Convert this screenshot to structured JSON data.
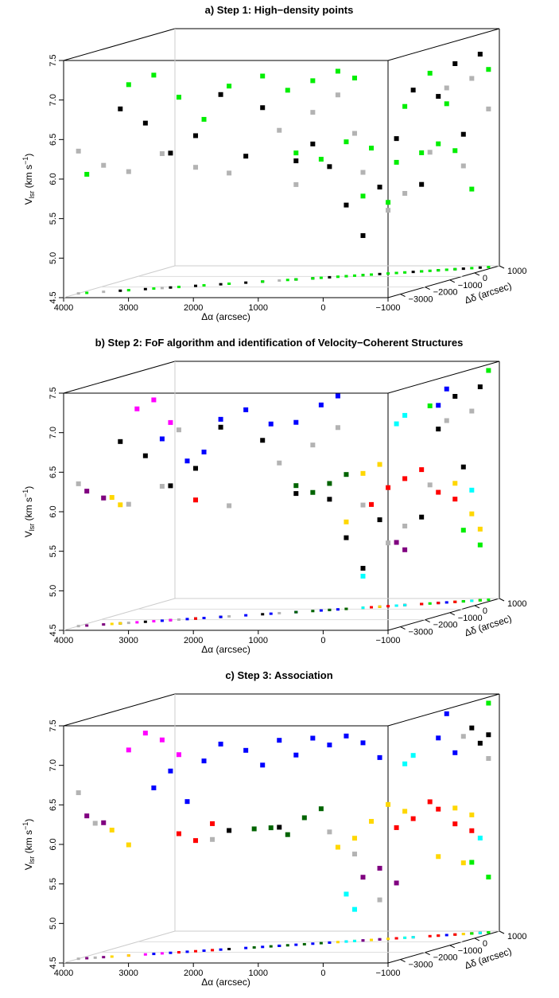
{
  "chart_data": [
    {
      "type": "scatter",
      "title": "a)  Step 1: High−density points",
      "xlabel": "Δα (arcsec)",
      "ylabel": "V",
      "ylabel_sub": "lsr",
      "ylabel_unit": "(km s",
      "ylabel_exp": "−1",
      "ylabel_close": ")",
      "zlabel": "Δδ (arcsec)",
      "xticks": [
        "4000",
        "3000",
        "2000",
        "1000",
        "0",
        "−1000"
      ],
      "yticks": [
        "4.5",
        "5.0",
        "5.5",
        "6.0",
        "6.5",
        "7.0",
        "7.5"
      ],
      "zticks": [
        "−3000",
        "−2000",
        "−1000",
        "0",
        "1000"
      ],
      "xlim": [
        4000,
        -1000
      ],
      "ylim": [
        4.5,
        7.5
      ],
      "zlim": [
        -3500,
        1000
      ],
      "series": [
        {
          "color": "#b3b3b3",
          "points": [
            [
              4000,
              6.3
            ],
            [
              3700,
              6.1
            ],
            [
              3400,
              6.0
            ],
            [
              3000,
              6.2
            ],
            [
              2600,
              6.0
            ],
            [
              2200,
              5.9
            ],
            [
              1600,
              6.4
            ],
            [
              1200,
              6.6
            ],
            [
              900,
              6.8
            ],
            [
              600,
              5.8
            ],
            [
              300,
              5.3
            ],
            [
              100,
              5.5
            ],
            [
              -200,
              6.0
            ],
            [
              -400,
              6.8
            ],
            [
              -700,
              6.9
            ],
            [
              -900,
              6.5
            ],
            [
              700,
              6.3
            ],
            [
              1400,
              5.7
            ],
            [
              -600,
              5.8
            ],
            [
              2800,
              6.9
            ]
          ]
        },
        {
          "color": "#000000",
          "points": [
            [
              3200,
              6.6
            ],
            [
              2900,
              6.2
            ],
            [
              2600,
              6.4
            ],
            [
              2300,
              6.9
            ],
            [
              1800,
              6.7
            ],
            [
              1400,
              6.0
            ],
            [
              1000,
              5.9
            ],
            [
              800,
              5.4
            ],
            [
              600,
              5.0
            ],
            [
              400,
              5.6
            ],
            [
              200,
              6.2
            ],
            [
              -100,
              5.6
            ],
            [
              -300,
              6.7
            ],
            [
              -500,
              7.1
            ],
            [
              -800,
              7.2
            ],
            [
              1200,
              6.2
            ],
            [
              2000,
              6.1
            ],
            [
              3500,
              6.8
            ],
            [
              0,
              6.8
            ],
            [
              -600,
              6.2
            ]
          ]
        },
        {
          "color": "#00ee00",
          "points": [
            [
              3400,
              7.1
            ],
            [
              3100,
              7.2
            ],
            [
              2800,
              6.9
            ],
            [
              2500,
              6.6
            ],
            [
              2200,
              7.0
            ],
            [
              1800,
              7.1
            ],
            [
              1500,
              6.9
            ],
            [
              1200,
              7.0
            ],
            [
              900,
              7.1
            ],
            [
              700,
              7.0
            ],
            [
              1400,
              6.1
            ],
            [
              1100,
              6.0
            ],
            [
              800,
              6.2
            ],
            [
              500,
              6.1
            ],
            [
              200,
              5.9
            ],
            [
              -100,
              6.0
            ],
            [
              -300,
              6.1
            ],
            [
              -500,
              6.0
            ],
            [
              -700,
              5.5
            ],
            [
              600,
              5.5
            ],
            [
              300,
              5.4
            ],
            [
              -200,
              7.0
            ],
            [
              -400,
              6.6
            ],
            [
              3900,
              6.0
            ],
            [
              -900,
              7.0
            ],
            [
              100,
              6.6
            ]
          ]
        }
      ]
    },
    {
      "type": "scatter",
      "title": "b) Step 2: FoF algorithm and identification of Velocity−Coherent Structures",
      "xlabel": "Δα (arcsec)",
      "ylabel": "V",
      "ylabel_sub": "lsr",
      "ylabel_unit": "(km s",
      "ylabel_exp": "−1",
      "ylabel_close": ")",
      "zlabel": "Δδ (arcsec)",
      "xticks": [
        "4000",
        "3000",
        "2000",
        "1000",
        "0",
        "−1000"
      ],
      "yticks": [
        "4.5",
        "5.0",
        "5.5",
        "6.0",
        "6.5",
        "7.0",
        "7.5"
      ],
      "zticks": [
        "−3000",
        "−2000",
        "−1000",
        "0",
        "1000"
      ],
      "xlim": [
        4000,
        -1000
      ],
      "ylim": [
        4.5,
        7.5
      ],
      "zlim": [
        -3500,
        1000
      ],
      "series": [
        {
          "color": "#b3b3b3",
          "points": [
            [
              4000,
              6.3
            ],
            [
              3700,
              6.1
            ],
            [
              3400,
              6.0
            ],
            [
              3000,
              6.2
            ],
            [
              2600,
              6.0
            ],
            [
              2200,
              5.9
            ],
            [
              1600,
              6.4
            ],
            [
              1200,
              6.6
            ],
            [
              900,
              6.8
            ],
            [
              600,
              5.8
            ],
            [
              300,
              5.3
            ],
            [
              100,
              5.5
            ],
            [
              -200,
              6.0
            ],
            [
              -400,
              6.8
            ],
            [
              -700,
              6.9
            ],
            [
              2800,
              6.9
            ]
          ]
        },
        {
          "color": "#000000",
          "points": [
            [
              3200,
              6.6
            ],
            [
              2900,
              6.2
            ],
            [
              2600,
              6.4
            ],
            [
              2300,
              6.9
            ],
            [
              1800,
              6.7
            ],
            [
              1400,
              6.0
            ],
            [
              1000,
              5.9
            ],
            [
              800,
              5.4
            ],
            [
              600,
              5.0
            ],
            [
              400,
              5.6
            ],
            [
              -100,
              5.6
            ],
            [
              -300,
              6.7
            ],
            [
              -500,
              7.1
            ],
            [
              -800,
              7.2
            ],
            [
              3500,
              6.8
            ],
            [
              -600,
              6.2
            ]
          ]
        },
        {
          "color": "#0000ff",
          "points": [
            [
              3000,
              6.8
            ],
            [
              2700,
              6.5
            ],
            [
              2500,
              6.6
            ],
            [
              2300,
              7.0
            ],
            [
              2000,
              7.1
            ],
            [
              1700,
              6.9
            ],
            [
              1400,
              6.9
            ],
            [
              1100,
              7.1
            ],
            [
              900,
              7.2
            ],
            [
              -300,
              7.0
            ],
            [
              -400,
              7.2
            ]
          ]
        },
        {
          "color": "#ff00ff",
          "points": [
            [
              3300,
              7.2
            ],
            [
              3100,
              7.3
            ],
            [
              2900,
              7.0
            ]
          ]
        },
        {
          "color": "#800080",
          "points": [
            [
              3900,
              6.2
            ],
            [
              3700,
              6.1
            ],
            [
              200,
              5.3
            ],
            [
              100,
              5.2
            ]
          ]
        },
        {
          "color": "#ffd700",
          "points": [
            [
              3600,
              6.1
            ],
            [
              3500,
              6.0
            ],
            [
              800,
              5.6
            ],
            [
              600,
              6.2
            ],
            [
              400,
              6.3
            ],
            [
              -500,
              6.0
            ],
            [
              -700,
              5.6
            ],
            [
              -800,
              5.4
            ]
          ]
        },
        {
          "color": "#006400",
          "points": [
            [
              1400,
              6.1
            ],
            [
              1200,
              6.0
            ],
            [
              1000,
              6.1
            ],
            [
              800,
              6.2
            ]
          ]
        },
        {
          "color": "#ff0000",
          "points": [
            [
              2600,
              6.0
            ],
            [
              500,
              5.8
            ],
            [
              300,
              6.0
            ],
            [
              100,
              6.1
            ],
            [
              -100,
              6.2
            ],
            [
              -300,
              5.9
            ],
            [
              -500,
              5.8
            ]
          ]
        },
        {
          "color": "#00ffff",
          "points": [
            [
              200,
              6.8
            ],
            [
              100,
              6.9
            ],
            [
              600,
              4.9
            ],
            [
              -700,
              5.9
            ]
          ]
        },
        {
          "color": "#00ee00",
          "points": [
            [
              -200,
              7.0
            ],
            [
              -600,
              5.4
            ],
            [
              -800,
              5.2
            ],
            [
              -900,
              7.4
            ]
          ]
        }
      ]
    },
    {
      "type": "scatter",
      "title": "c)  Step 3: Association",
      "xlabel": "Δα (arcsec)",
      "ylabel": "V",
      "ylabel_sub": "lsr",
      "ylabel_unit": "(km s",
      "ylabel_exp": "−1",
      "ylabel_close": ")",
      "zlabel": "Δδ (arcsec)",
      "xticks": [
        "4000",
        "3000",
        "2000",
        "1000",
        "0",
        "−1000"
      ],
      "yticks": [
        "4.5",
        "5.0",
        "5.5",
        "6.0",
        "6.5",
        "7.0",
        "7.5"
      ],
      "zticks": [
        "−3000",
        "−2000",
        "−1000",
        "0",
        "1000"
      ],
      "xlim": [
        4000,
        -1000
      ],
      "ylim": [
        4.5,
        7.5
      ],
      "zlim": [
        -3500,
        1000
      ],
      "series": [
        {
          "color": "#b3b3b3",
          "points": [
            [
              4000,
              6.6
            ],
            [
              3800,
              6.2
            ],
            [
              2400,
              5.9
            ],
            [
              1000,
              5.9
            ],
            [
              700,
              5.6
            ],
            [
              400,
              5.0
            ],
            [
              -600,
              7.0
            ],
            [
              -900,
              6.7
            ]
          ]
        },
        {
          "color": "#000000",
          "points": [
            [
              2200,
              6.0
            ],
            [
              1600,
              6.0
            ],
            [
              -700,
              7.1
            ],
            [
              -900,
              7.0
            ],
            [
              -800,
              6.9
            ]
          ]
        },
        {
          "color": "#ff00ff",
          "points": [
            [
              3400,
              7.1
            ],
            [
              3200,
              7.3
            ],
            [
              3000,
              7.2
            ],
            [
              2800,
              7.0
            ]
          ]
        },
        {
          "color": "#0000ff",
          "points": [
            [
              3100,
              6.6
            ],
            [
              2900,
              6.8
            ],
            [
              2700,
              6.4
            ],
            [
              2500,
              6.9
            ],
            [
              2300,
              7.1
            ],
            [
              2000,
              7.0
            ],
            [
              1800,
              6.8
            ],
            [
              1600,
              7.1
            ],
            [
              1400,
              6.9
            ],
            [
              1200,
              7.1
            ],
            [
              1000,
              7.0
            ],
            [
              800,
              7.1
            ],
            [
              600,
              7.0
            ],
            [
              400,
              6.8
            ],
            [
              -300,
              7.0
            ],
            [
              -500,
              6.8
            ],
            [
              -400,
              7.3
            ]
          ]
        },
        {
          "color": "#800080",
          "points": [
            [
              3900,
              6.3
            ],
            [
              3700,
              6.2
            ],
            [
              600,
              5.3
            ],
            [
              400,
              5.4
            ],
            [
              200,
              5.2
            ]
          ]
        },
        {
          "color": "#ffd700",
          "points": [
            [
              3600,
              6.1
            ],
            [
              3400,
              5.9
            ],
            [
              900,
              5.7
            ],
            [
              700,
              5.8
            ],
            [
              500,
              6.0
            ],
            [
              300,
              6.2
            ],
            [
              100,
              6.1
            ],
            [
              -500,
              6.1
            ],
            [
              -700,
              6.0
            ],
            [
              -300,
              5.5
            ],
            [
              -600,
              5.4
            ]
          ]
        },
        {
          "color": "#ff0000",
          "points": [
            [
              2800,
              6.0
            ],
            [
              2600,
              5.9
            ],
            [
              2400,
              6.1
            ],
            [
              200,
              5.9
            ],
            [
              0,
              6.0
            ],
            [
              -200,
              6.2
            ],
            [
              -300,
              6.1
            ],
            [
              -500,
              5.9
            ],
            [
              -700,
              5.8
            ]
          ]
        },
        {
          "color": "#006400",
          "points": [
            [
              1900,
              6.0
            ],
            [
              1700,
              6.0
            ],
            [
              1500,
              5.9
            ],
            [
              1300,
              6.1
            ],
            [
              1100,
              6.2
            ]
          ]
        },
        {
          "color": "#00ffff",
          "points": [
            [
              800,
              5.1
            ],
            [
              700,
              4.9
            ],
            [
              100,
              6.7
            ],
            [
              0,
              6.8
            ],
            [
              -800,
              5.7
            ]
          ]
        },
        {
          "color": "#00ee00",
          "points": [
            [
              -900,
              7.4
            ],
            [
              -700,
              5.4
            ],
            [
              -900,
              5.2
            ]
          ]
        }
      ]
    }
  ]
}
